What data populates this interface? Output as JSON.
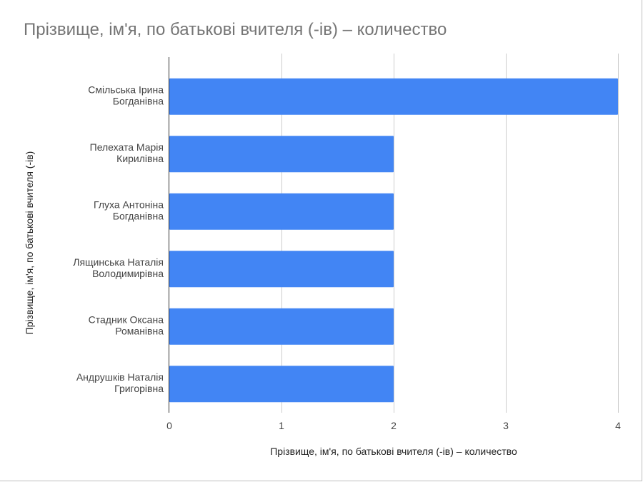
{
  "chart_data": {
    "type": "bar",
    "orientation": "horizontal",
    "title": "Прізвище, ім'я, по батькові вчителя (-ів) – количество",
    "xlabel": "Прізвище, ім'я, по батькові вчителя (-ів) – количество",
    "ylabel": "Прізвище, ім'я, по батькові вчителя (-ів)",
    "categories": [
      [
        "Смільська Ірина",
        "Богданівна"
      ],
      [
        "Пелехата Марія",
        "Кирилівна"
      ],
      [
        "Глуха Антоніна",
        "Богданівна"
      ],
      [
        "Лящинська Наталія",
        "Володимирівна"
      ],
      [
        "Стадник Оксана",
        "Романівна"
      ],
      [
        "Андрушків Наталія",
        "Григорівна"
      ]
    ],
    "values": [
      4,
      2,
      2,
      2,
      2,
      2
    ],
    "xlim": [
      0,
      4
    ],
    "xticks": [
      0,
      1,
      2,
      3,
      4
    ],
    "grid": true,
    "legend": "none",
    "colors": {
      "bar": "#4285f4"
    }
  }
}
